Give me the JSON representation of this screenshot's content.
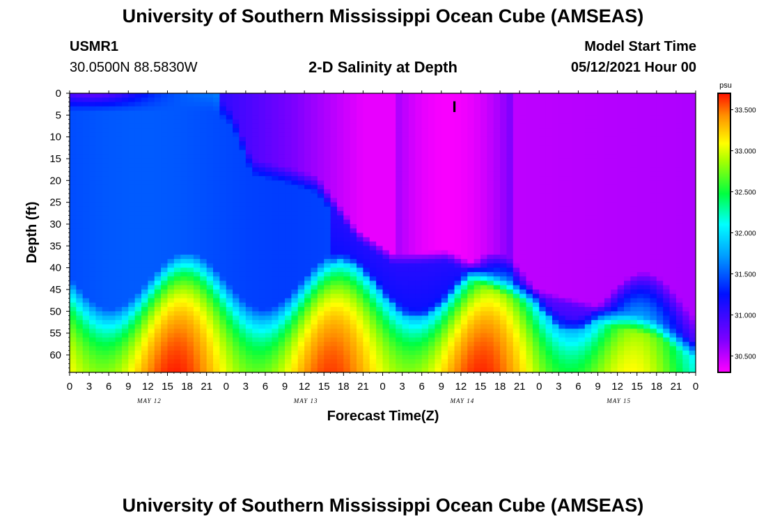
{
  "page": {
    "title_top": "University of Southern Mississippi Ocean Cube (AMSEAS)",
    "title_bottom": "University of Southern Mississippi Ocean Cube (AMSEAS)",
    "station_id": "USMR1",
    "station_coords": "30.0500N  88.5830W",
    "model_start_label": "Model Start Time",
    "model_start_value": "05/12/2021 Hour 00"
  },
  "chart_data": {
    "type": "heatmap",
    "title": "2-D Salinity at Depth",
    "xlabel": "Forecast Time(Z)",
    "ylabel": "Depth (ft)",
    "x_range_hours": [
      0,
      96
    ],
    "y_range_ft": [
      0,
      64
    ],
    "x_tick_labels": [
      "0",
      "3",
      "6",
      "9",
      "12",
      "15",
      "18",
      "21",
      "0",
      "3",
      "6",
      "9",
      "12",
      "15",
      "18",
      "21",
      "0",
      "3",
      "6",
      "9",
      "12",
      "15",
      "18",
      "21",
      "0",
      "3",
      "6",
      "9",
      "12",
      "15",
      "18",
      "21",
      "0"
    ],
    "day_labels": [
      {
        "label": "MAY 12",
        "hour": 12
      },
      {
        "label": "MAY 13",
        "hour": 36
      },
      {
        "label": "MAY 14",
        "hour": 60
      },
      {
        "label": "MAY 15",
        "hour": 84
      }
    ],
    "y_tick_labels": [
      "0",
      "5",
      "10",
      "15",
      "20",
      "25",
      "30",
      "35",
      "40",
      "45",
      "50",
      "55",
      "60"
    ],
    "y_tick_values": [
      0,
      5,
      10,
      15,
      20,
      25,
      30,
      35,
      40,
      45,
      50,
      55,
      60
    ],
    "colorbar": {
      "unit": "psu",
      "range": [
        30.3,
        33.7
      ],
      "tick_values": [
        30.5,
        31.0,
        31.5,
        32.0,
        32.5,
        33.0,
        33.5
      ],
      "tick_labels": [
        "30.500",
        "31.000",
        "31.500",
        "32.000",
        "32.500",
        "33.000",
        "33.500"
      ]
    },
    "marker": {
      "label": "I",
      "hour": 59,
      "depth_ft": 3
    }
  }
}
